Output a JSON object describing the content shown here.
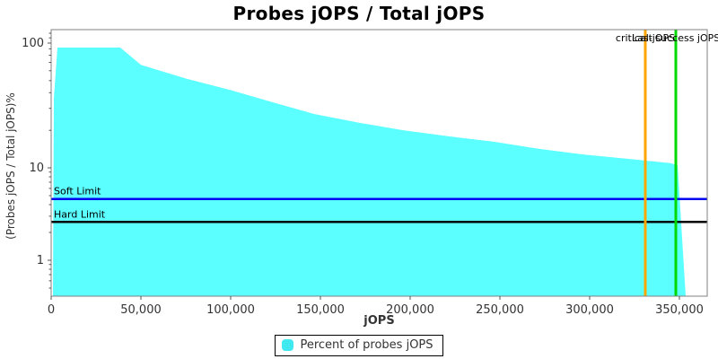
{
  "chart_data": {
    "type": "area",
    "title": "Probes jOPS / Total jOPS",
    "xlabel": "jOPS",
    "ylabel": "(Probes jOPS / Total jOPS)%",
    "x_scale": "linear",
    "y_scale": "log",
    "xlim": [
      0,
      365500
    ],
    "grid": false,
    "legend_position": "bottom",
    "x_ticks": [
      {
        "value": 0,
        "label": "0"
      },
      {
        "value": 50000,
        "label": "50,000"
      },
      {
        "value": 100000,
        "label": "100,000"
      },
      {
        "value": 150000,
        "label": "150,000"
      },
      {
        "value": 200000,
        "label": "200,000"
      },
      {
        "value": 250000,
        "label": "250,000"
      },
      {
        "value": 300000,
        "label": "300,000"
      },
      {
        "value": 350000,
        "label": "350,000"
      }
    ],
    "y_ticks": [
      {
        "value": 100,
        "label": "100"
      },
      {
        "value": 10,
        "label": "10"
      },
      {
        "value": 1,
        "label": "1"
      }
    ],
    "series": [
      {
        "name": "Percent of probes jOPS",
        "color": "#5BFFFF",
        "points": [
          [
            1000,
            0.41
          ],
          [
            1500,
            36
          ],
          [
            3500,
            92
          ],
          [
            38500,
            92
          ],
          [
            50000,
            67
          ],
          [
            75000,
            52
          ],
          [
            100000,
            42
          ],
          [
            125000,
            33
          ],
          [
            146500,
            27
          ],
          [
            171500,
            23
          ],
          [
            196500,
            20
          ],
          [
            221500,
            17.9
          ],
          [
            246500,
            16.2
          ],
          [
            271500,
            14.2
          ],
          [
            296500,
            12.8
          ],
          [
            321500,
            11.8
          ],
          [
            345000,
            10.9
          ],
          [
            349000,
            10.5
          ],
          [
            353500,
            0.41
          ]
        ]
      }
    ],
    "h_lines": [
      {
        "id": "soft-limit",
        "label": "Soft Limit",
        "value": 4.6,
        "color": "#0000F0"
      },
      {
        "id": "hard-limit",
        "label": "Hard Limit",
        "value": 2.6,
        "color": "#000000"
      }
    ],
    "v_lines": [
      {
        "id": "critical-jops",
        "label": "critical-jOPS",
        "value": 331000,
        "color": "#FFA500"
      },
      {
        "id": "last-success",
        "label": "Last success jOPS for S",
        "value": 348000,
        "color": "#00D900"
      }
    ]
  },
  "legend": {
    "items": [
      {
        "label": "Percent of probes jOPS",
        "color": "#40E8F0"
      }
    ]
  },
  "style": {
    "axis_border_color": "#808080",
    "tick_color": "#555555",
    "tick_label_color": "#333333",
    "annotation_color": "#000000"
  }
}
